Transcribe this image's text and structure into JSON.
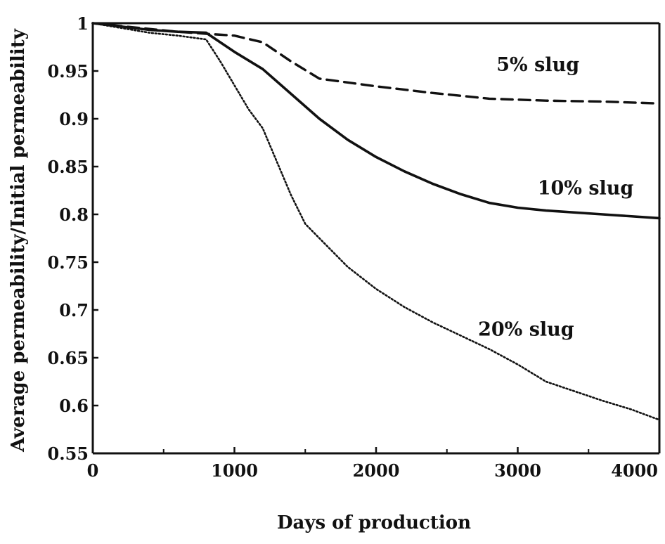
{
  "chart_data": {
    "type": "line",
    "xlabel": "Days of production",
    "ylabel": "Average permeability/Initial permeability",
    "xlim": [
      0,
      4000
    ],
    "ylim": [
      0.55,
      1
    ],
    "x_ticks": [
      0,
      1000,
      2000,
      3000,
      4000
    ],
    "x_tick_labels": [
      "0",
      "1000",
      "2000",
      "3000",
      "4000"
    ],
    "y_ticks": [
      0.55,
      0.6,
      0.65,
      0.7,
      0.75,
      0.8,
      0.85,
      0.9,
      0.95,
      1
    ],
    "y_tick_labels": [
      "0.55",
      "0.6",
      "0.65",
      "0.7",
      "0.75",
      "0.8",
      "0.85",
      "0.9",
      "0.95",
      "1"
    ],
    "grid": false,
    "series": [
      {
        "name": "5% slug",
        "style": "dashed",
        "x": [
          0,
          400,
          600,
          800,
          1000,
          1200,
          1400,
          1600,
          2000,
          2400,
          2800,
          3200,
          3600,
          4000
        ],
        "y": [
          1.0,
          0.994,
          0.991,
          0.989,
          0.987,
          0.98,
          0.96,
          0.942,
          0.934,
          0.927,
          0.921,
          0.919,
          0.918,
          0.916
        ]
      },
      {
        "name": "10% slug",
        "style": "solid",
        "x": [
          0,
          400,
          600,
          800,
          1000,
          1200,
          1400,
          1600,
          1800,
          2000,
          2200,
          2400,
          2600,
          2800,
          3000,
          3200,
          3600,
          4000
        ],
        "y": [
          1.0,
          0.993,
          0.991,
          0.99,
          0.97,
          0.952,
          0.926,
          0.9,
          0.878,
          0.86,
          0.845,
          0.832,
          0.821,
          0.812,
          0.807,
          0.804,
          0.8,
          0.796
        ]
      },
      {
        "name": "20% slug",
        "style": "dotted",
        "x": [
          0,
          400,
          600,
          800,
          900,
          1000,
          1100,
          1200,
          1300,
          1400,
          1500,
          1600,
          1800,
          2000,
          2200,
          2400,
          2600,
          2800,
          3000,
          3200,
          3400,
          3600,
          3800,
          4000
        ],
        "y": [
          1.0,
          0.99,
          0.987,
          0.983,
          0.96,
          0.935,
          0.91,
          0.89,
          0.855,
          0.82,
          0.79,
          0.775,
          0.745,
          0.722,
          0.703,
          0.687,
          0.673,
          0.659,
          0.643,
          0.625,
          0.615,
          0.605,
          0.596,
          0.585
        ]
      }
    ],
    "annotations": [
      {
        "text": "5% slug",
        "series": "5% slug",
        "x": 2850,
        "y": 0.95
      },
      {
        "text": "10% slug",
        "series": "10% slug",
        "x": 3140,
        "y": 0.821
      },
      {
        "text": "20% slug",
        "series": "20% slug",
        "x": 2720,
        "y": 0.673
      }
    ]
  }
}
